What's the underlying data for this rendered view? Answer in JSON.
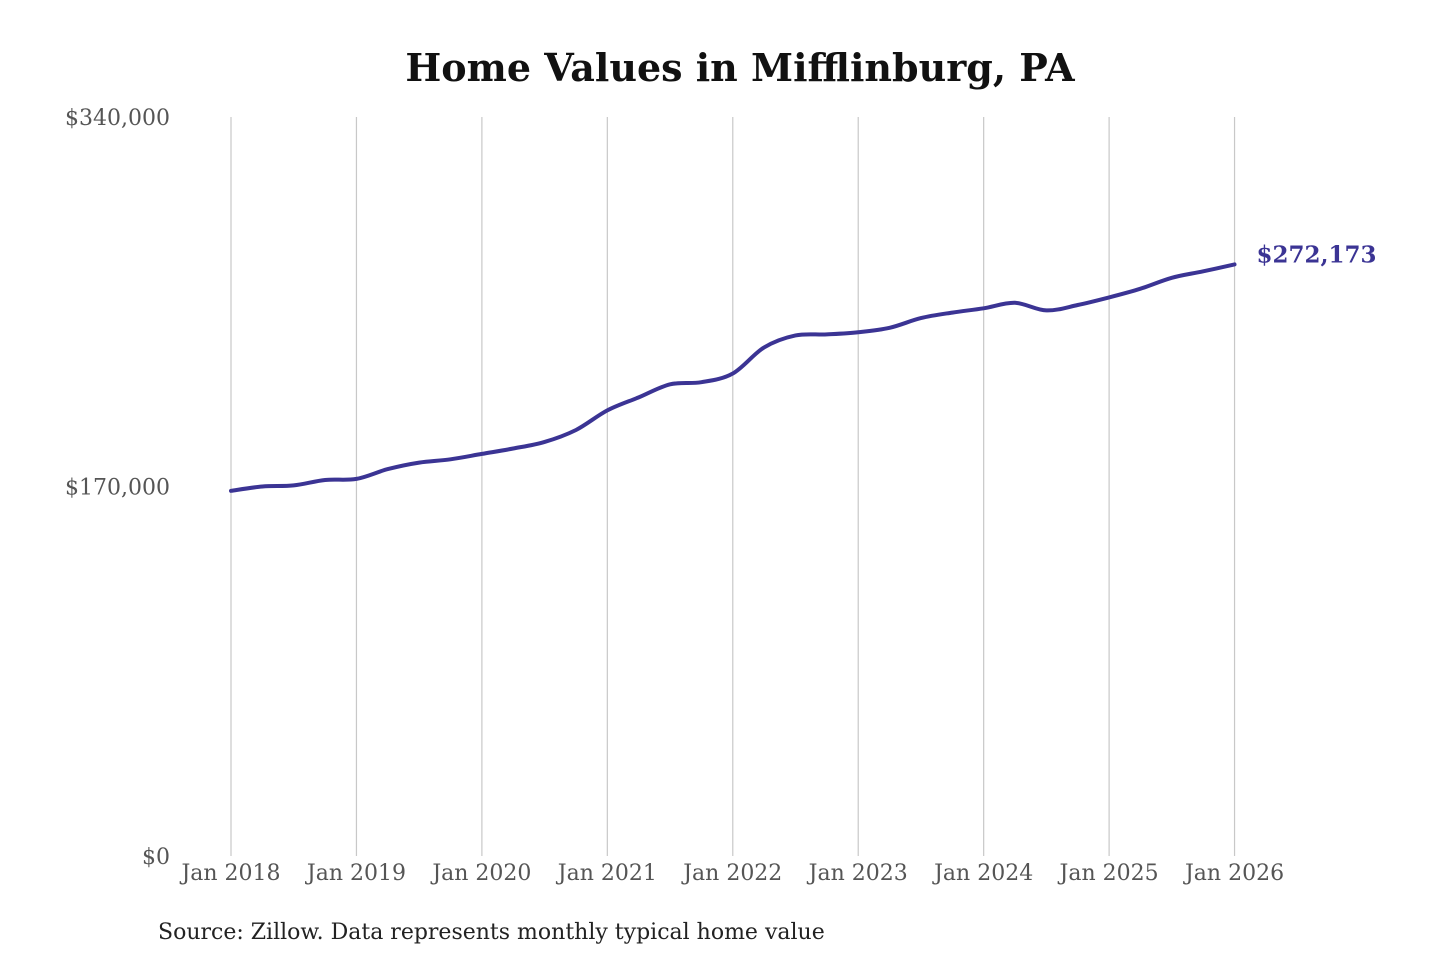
{
  "chart_data": {
    "type": "line",
    "title": "Home Values in Mifflinburg, PA",
    "xlabel": "",
    "ylabel": "",
    "xlim": [
      "2018-01",
      "2026-02"
    ],
    "ylim": [
      0,
      340000
    ],
    "y_ticks": [
      {
        "value": 0,
        "label": "$0"
      },
      {
        "value": 170000,
        "label": "$170,000"
      },
      {
        "value": 340000,
        "label": "$340,000"
      }
    ],
    "x_ticks": [
      {
        "value": "2018-01",
        "label": "Jan 2018"
      },
      {
        "value": "2019-01",
        "label": "Jan 2019"
      },
      {
        "value": "2020-01",
        "label": "Jan 2020"
      },
      {
        "value": "2021-01",
        "label": "Jan 2021"
      },
      {
        "value": "2022-01",
        "label": "Jan 2022"
      },
      {
        "value": "2023-01",
        "label": "Jan 2023"
      },
      {
        "value": "2024-01",
        "label": "Jan 2024"
      },
      {
        "value": "2025-01",
        "label": "Jan 2025"
      },
      {
        "value": "2026-01",
        "label": "Jan 2026"
      }
    ],
    "grid": {
      "vertical": true,
      "horizontal": false
    },
    "legend": "none",
    "line_color": "#3b3494",
    "series": [
      {
        "points": [
          {
            "x": "2018-01",
            "y": 168000
          },
          {
            "x": "2018-04",
            "y": 170000
          },
          {
            "x": "2018-07",
            "y": 170500
          },
          {
            "x": "2018-10",
            "y": 173000
          },
          {
            "x": "2019-01",
            "y": 173500
          },
          {
            "x": "2019-04",
            "y": 178000
          },
          {
            "x": "2019-07",
            "y": 181000
          },
          {
            "x": "2019-10",
            "y": 182500
          },
          {
            "x": "2020-01",
            "y": 185000
          },
          {
            "x": "2020-04",
            "y": 187500
          },
          {
            "x": "2020-07",
            "y": 190500
          },
          {
            "x": "2020-10",
            "y": 196000
          },
          {
            "x": "2021-01",
            "y": 205000
          },
          {
            "x": "2021-04",
            "y": 211000
          },
          {
            "x": "2021-07",
            "y": 217000
          },
          {
            "x": "2021-10",
            "y": 218000
          },
          {
            "x": "2022-01",
            "y": 222000
          },
          {
            "x": "2022-04",
            "y": 234000
          },
          {
            "x": "2022-07",
            "y": 239500
          },
          {
            "x": "2022-10",
            "y": 240000
          },
          {
            "x": "2023-01",
            "y": 241000
          },
          {
            "x": "2023-04",
            "y": 243000
          },
          {
            "x": "2023-07",
            "y": 247500
          },
          {
            "x": "2023-10",
            "y": 250000
          },
          {
            "x": "2024-01",
            "y": 252000
          },
          {
            "x": "2024-04",
            "y": 254500
          },
          {
            "x": "2024-07",
            "y": 251000
          },
          {
            "x": "2024-10",
            "y": 253500
          },
          {
            "x": "2025-01",
            "y": 257000
          },
          {
            "x": "2025-04",
            "y": 261000
          },
          {
            "x": "2025-07",
            "y": 266000
          },
          {
            "x": "2025-10",
            "y": 269000
          },
          {
            "x": "2026-01",
            "y": 272173
          }
        ]
      }
    ],
    "annotations": [
      {
        "text": "$272,173",
        "x": "2026-01",
        "y": 272173
      }
    ],
    "source_note": "Source: Zillow. Data represents monthly typical home value"
  }
}
